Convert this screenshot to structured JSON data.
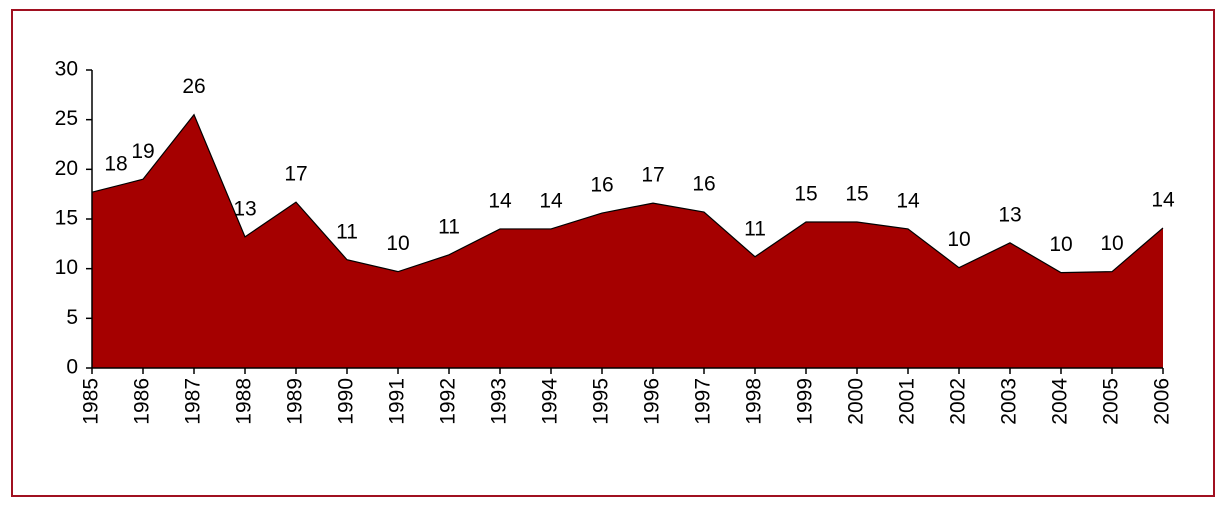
{
  "chart_data": {
    "type": "area",
    "categories": [
      "1985",
      "1986",
      "1987",
      "1988",
      "1989",
      "1990",
      "1991",
      "1992",
      "1993",
      "1994",
      "1995",
      "1996",
      "1997",
      "1998",
      "1999",
      "2000",
      "2001",
      "2002",
      "2003",
      "2004",
      "2005",
      "2006"
    ],
    "values": [
      17.7,
      19.0,
      25.5,
      13.2,
      16.7,
      10.9,
      9.7,
      11.4,
      14.0,
      14.0,
      15.6,
      16.6,
      15.7,
      11.2,
      14.7,
      14.7,
      14.0,
      10.1,
      12.6,
      9.6,
      9.7,
      14.1
    ],
    "value_labels": [
      "18",
      "19",
      "26",
      "13",
      "17",
      "11",
      "10",
      "11",
      "14",
      "14",
      "16",
      "17",
      "16",
      "11",
      "15",
      "15",
      "14",
      "10",
      "13",
      "10",
      "10",
      "14"
    ],
    "color": "#a50000",
    "ylim": [
      0,
      30
    ],
    "yticks": [
      0,
      5,
      10,
      15,
      20,
      25,
      30
    ]
  }
}
